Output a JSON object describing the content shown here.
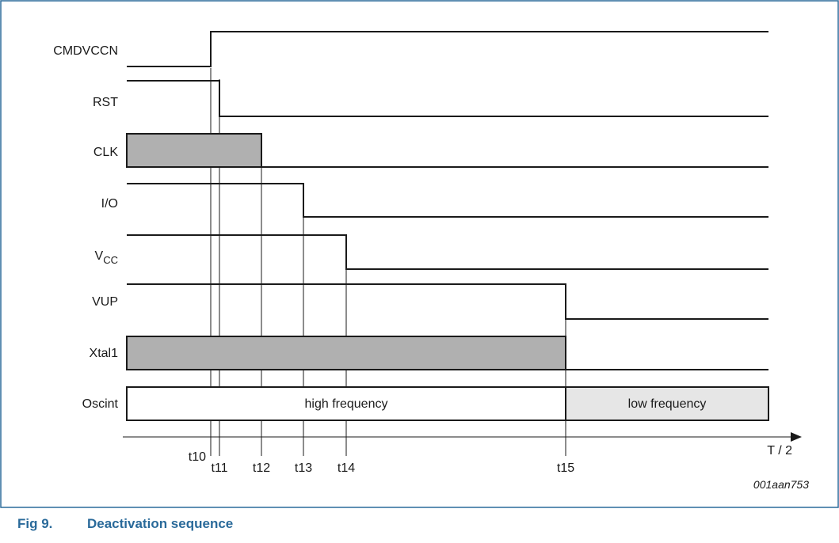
{
  "figure_code": "001aan753",
  "caption": {
    "number": "Fig 9.",
    "title": "Deactivation sequence"
  },
  "axis_label": "T / 2",
  "colors": {
    "frame": "#2a6a9a",
    "caption": "#2a6a9a",
    "fill_dark": "#b0b0b0",
    "fill_light": "#e6e6e6",
    "line": "#1a1a1a"
  },
  "signals": [
    {
      "key": "cmdvccn",
      "label": "CMDVCCN"
    },
    {
      "key": "rst",
      "label": "RST"
    },
    {
      "key": "clk",
      "label": "CLK"
    },
    {
      "key": "io",
      "label": "I/O"
    },
    {
      "key": "vcc",
      "label": "V",
      "sub": "CC"
    },
    {
      "key": "vup",
      "label": "VUP"
    },
    {
      "key": "xtal1",
      "label": "Xtal1"
    },
    {
      "key": "oscint",
      "label": "Oscint"
    }
  ],
  "oscint_bands": {
    "high": "high frequency",
    "low": "low frequency"
  },
  "time_marks": [
    "t10",
    "t11",
    "t12",
    "t13",
    "t14",
    "t15"
  ]
}
